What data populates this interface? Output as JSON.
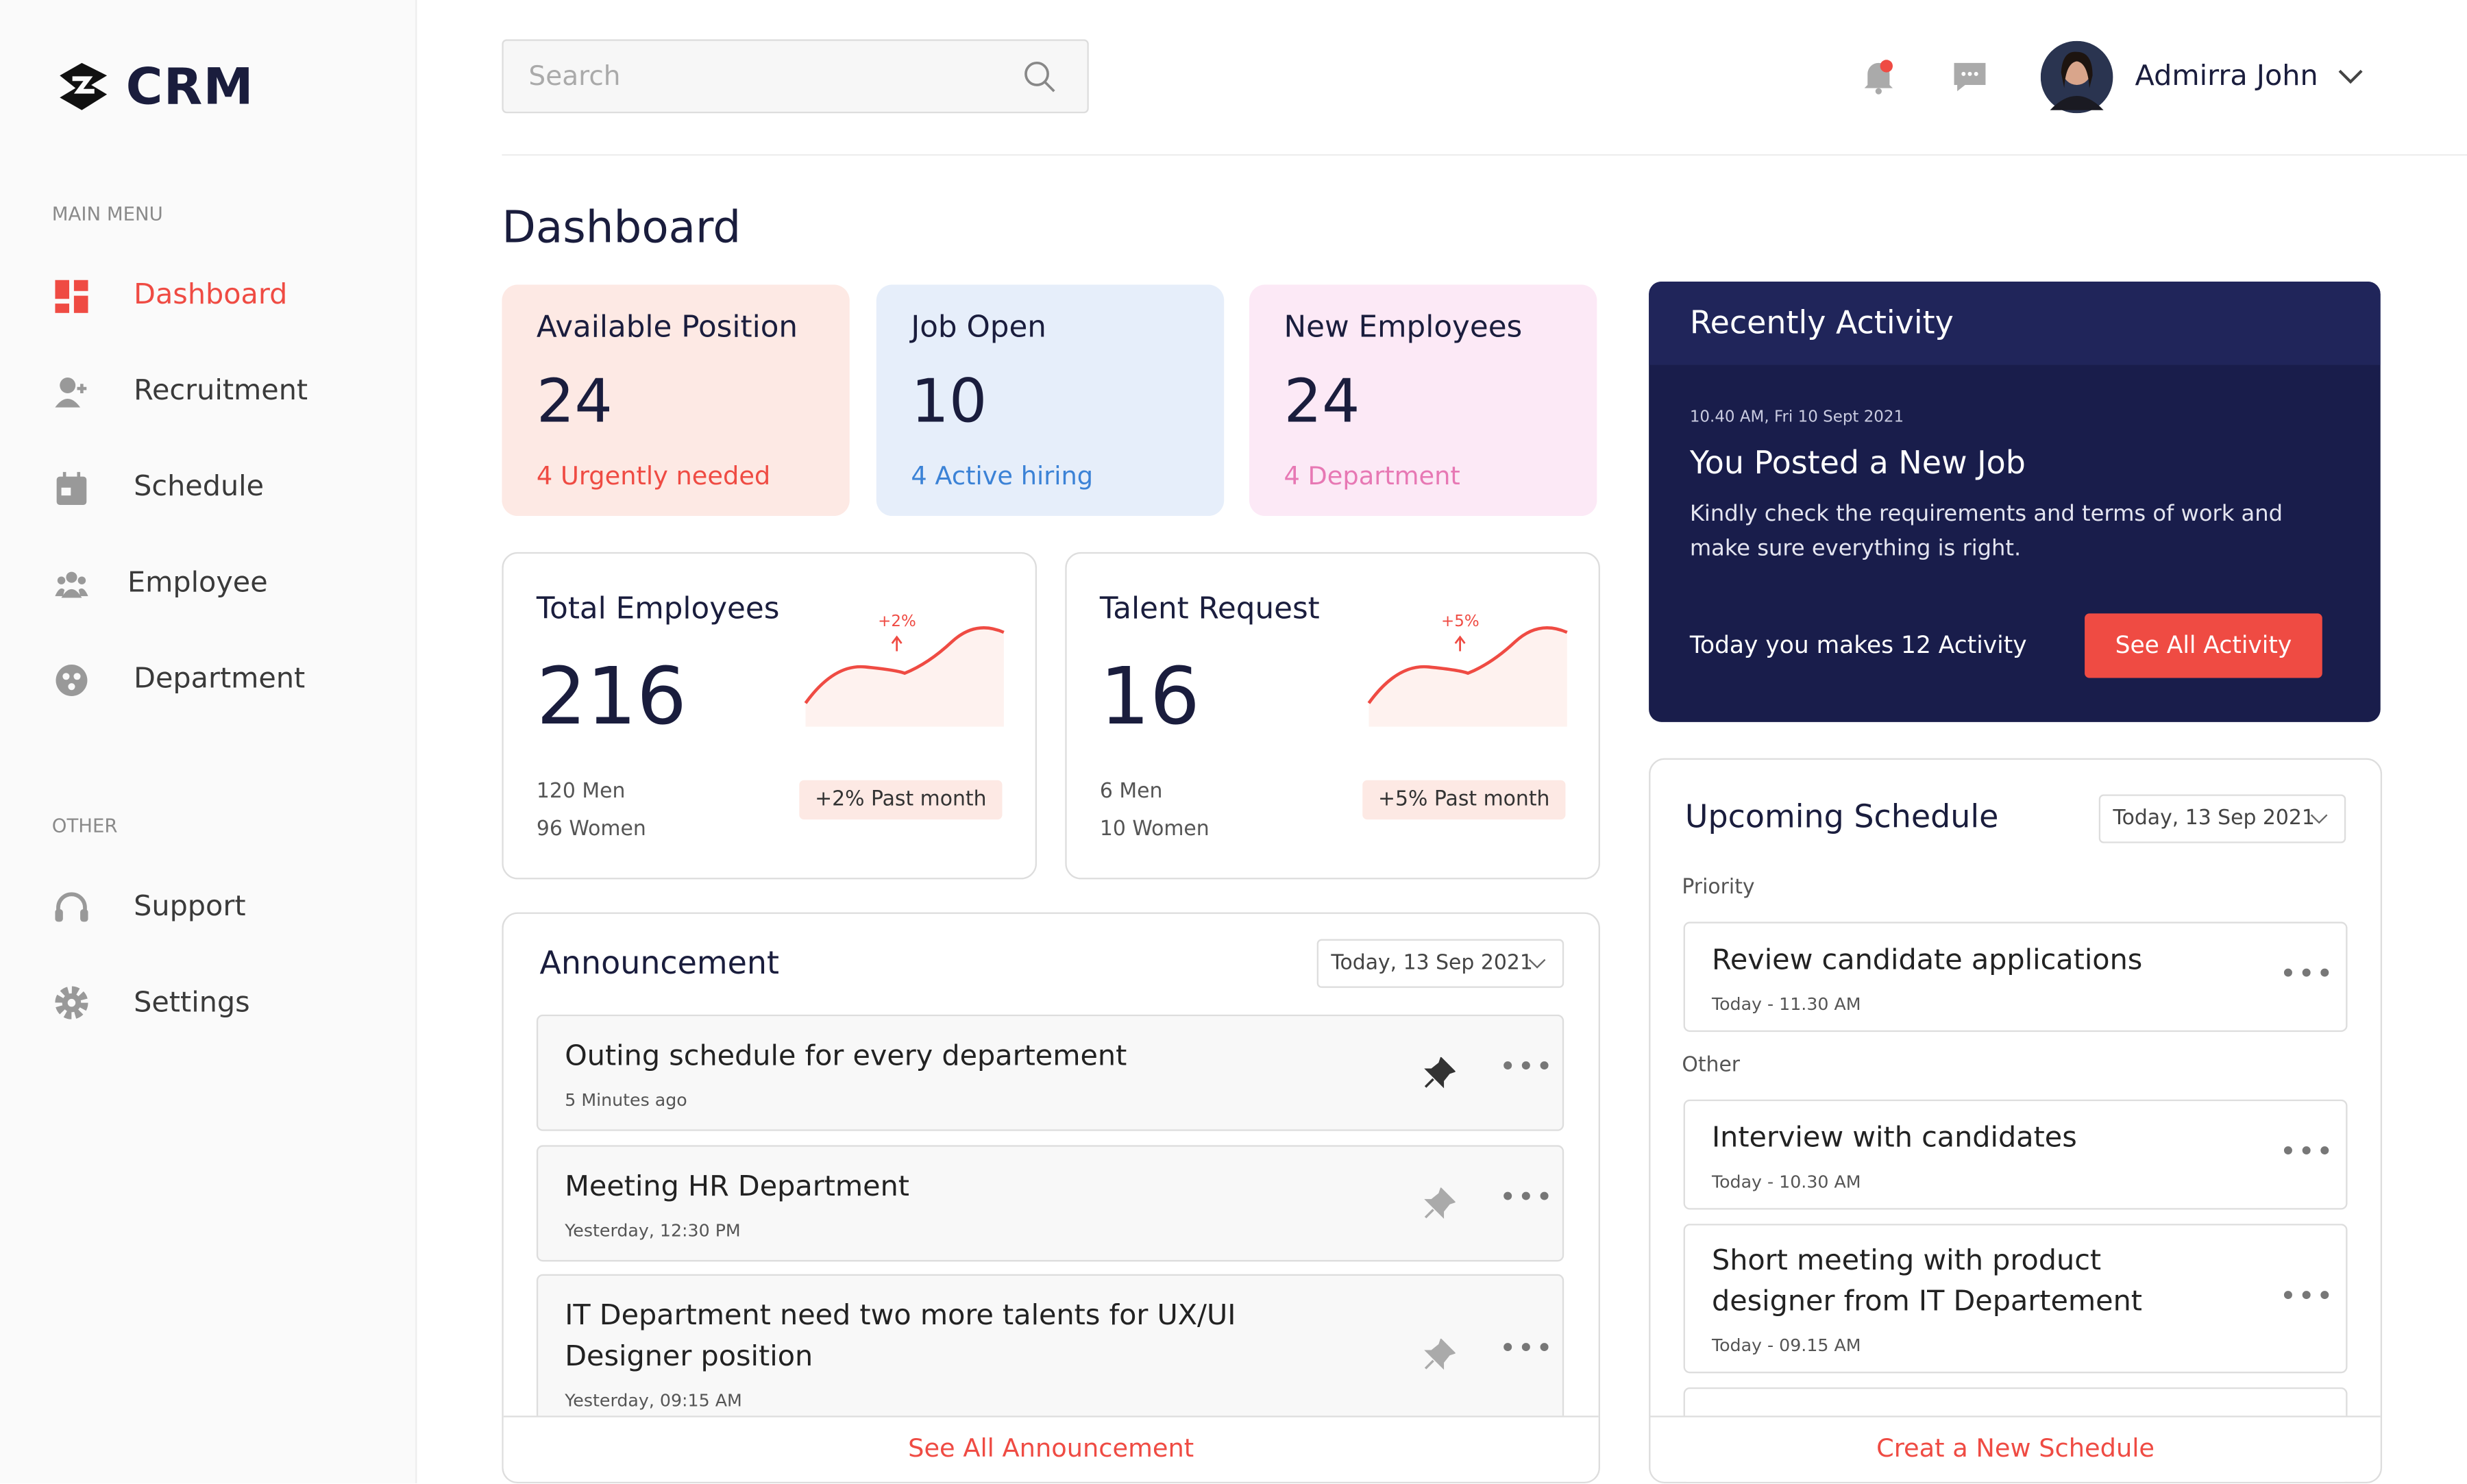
{
  "sidebar": {
    "logo": "CRM",
    "main_menu_label": "MAIN MENU",
    "main_menu": [
      "Dashboard",
      "Recruitment",
      "Schedule",
      "Employee",
      "Department"
    ],
    "other_label": "OTHER",
    "other_menu": [
      "Support",
      "Settings"
    ]
  },
  "header": {
    "search_placeholder": "Search",
    "user_name": "Admirra John"
  },
  "page_title": "Dashboard",
  "stat_cards": [
    {
      "title": "Available Position",
      "value": 24,
      "note": "4 Urgently needed"
    },
    {
      "title": "Job Open",
      "value": 10,
      "note": "4 Active hiring"
    },
    {
      "title": "New Employees",
      "value": 24,
      "note": "4 Department"
    }
  ],
  "summary_cards": [
    {
      "title": "Total Employees",
      "value": 216,
      "trend": "+2%",
      "badge": "+2% Past month",
      "lines": [
        "120 Men",
        "96 Women"
      ]
    },
    {
      "title": "Talent Request",
      "value": 16,
      "trend": "+5%",
      "badge": "+5% Past month",
      "lines": [
        "6 Men",
        "10 Women"
      ]
    }
  ],
  "announcement": {
    "title": "Announcement",
    "date": "Today, 13 Sep 2021",
    "items": [
      {
        "text": "Outing schedule for every departement",
        "time": "5 Minutes ago"
      },
      {
        "text": "Meeting HR Department",
        "time": "Yesterday, 12:30 PM"
      },
      {
        "text": "IT Department need two more talents for UX/UI Designer position",
        "time": "Yesterday, 09:15 AM"
      }
    ],
    "footer": "See All Announcement"
  },
  "recent_activity": {
    "title": "Recently Activity",
    "time": "10.40 AM, Fri 10 Sept 2021",
    "headline": "You Posted a New Job",
    "body": "Kindly check the requirements and terms of work and make sure everything is right.",
    "summary": "Today you makes 12 Activity",
    "button": "See All Activity"
  },
  "schedule": {
    "title": "Upcoming Schedule",
    "date": "Today, 13 Sep 2021",
    "groups": [
      {
        "label": "Priority",
        "items": [
          {
            "text": "Review candidate applications",
            "time": "Today - 11.30 AM"
          }
        ]
      },
      {
        "label": "Other",
        "items": [
          {
            "text": "Interview with candidates",
            "time": "Today - 10.30 AM"
          },
          {
            "text": "Short meeting with product designer from IT Departement",
            "time": "Today - 09.15 AM"
          }
        ]
      }
    ],
    "footer": "Creat a New Schedule"
  }
}
